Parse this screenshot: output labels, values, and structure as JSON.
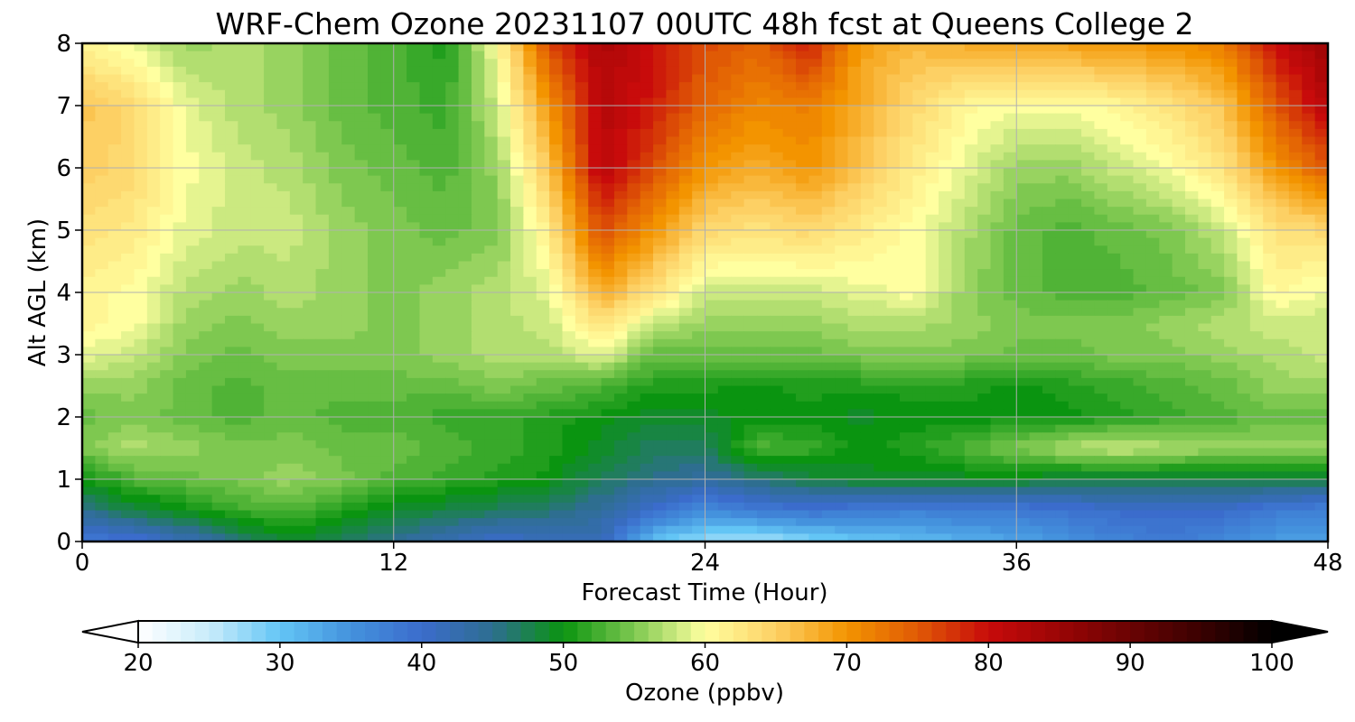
{
  "figure": {
    "title": "WRF-Chem Ozone  20231107 00UTC 48h fcst at Queens College 2"
  },
  "chart_data": {
    "type": "heatmap",
    "title": "WRF-Chem Ozone  20231107 00UTC 48h fcst at Queens College 2",
    "xlabel": "Forecast Time (Hour)",
    "ylabel": "Alt AGL (km)",
    "xlim": [
      0,
      48
    ],
    "ylim": [
      0,
      8
    ],
    "xticks": [
      0,
      12,
      24,
      36,
      48
    ],
    "yticks": [
      0,
      1,
      2,
      3,
      4,
      5,
      6,
      7,
      8
    ],
    "grid": true,
    "x_hours": [
      0,
      2,
      4,
      6,
      8,
      10,
      12,
      14,
      16,
      18,
      20,
      22,
      24,
      26,
      28,
      30,
      32,
      34,
      36,
      38,
      40,
      42,
      44,
      46,
      48
    ],
    "z_km": [
      0,
      0.5,
      1,
      1.5,
      2,
      2.5,
      3,
      3.5,
      4,
      5,
      6,
      7,
      8
    ],
    "ozone_ppbv": [
      [
        38,
        39,
        42,
        46,
        49,
        47,
        45,
        42,
        40,
        42,
        42,
        30,
        27,
        26,
        28,
        30,
        31,
        32,
        33,
        35,
        37,
        38,
        36,
        34,
        33
      ],
      [
        45,
        48,
        50,
        52,
        53,
        51,
        49,
        48,
        47,
        46,
        44,
        40,
        36,
        38,
        39,
        38,
        37,
        38,
        38,
        39,
        40,
        40,
        40,
        38,
        37
      ],
      [
        50,
        53,
        54,
        55,
        56,
        55,
        53,
        52,
        51,
        50,
        47,
        45,
        44,
        46,
        48,
        49,
        49,
        49,
        49,
        48,
        48,
        48,
        48,
        48,
        48
      ],
      [
        55,
        57,
        56,
        55,
        55,
        54,
        54,
        53,
        52,
        51,
        49,
        47,
        47,
        53,
        52,
        50,
        51,
        53,
        55,
        57,
        58,
        57,
        56,
        56,
        56
      ],
      [
        54,
        55,
        54,
        53,
        54,
        53,
        53,
        52,
        52,
        51,
        50,
        49,
        49,
        50,
        50,
        49,
        50,
        50,
        50,
        50,
        51,
        52,
        53,
        54,
        54
      ],
      [
        56,
        56,
        54,
        53,
        54,
        54,
        54,
        54,
        55,
        54,
        53,
        51,
        51,
        50,
        51,
        51,
        51,
        51,
        50,
        51,
        52,
        53,
        54,
        56,
        56
      ],
      [
        59,
        58,
        55,
        54,
        55,
        55,
        55,
        56,
        57,
        57,
        59,
        54,
        54,
        54,
        54,
        55,
        55,
        55,
        54,
        54,
        55,
        55,
        56,
        57,
        58
      ],
      [
        61,
        60,
        56,
        55,
        56,
        56,
        55,
        56,
        57,
        58,
        63,
        58,
        56,
        56,
        56,
        57,
        57,
        56,
        55,
        55,
        55,
        56,
        57,
        58,
        58
      ],
      [
        61,
        60,
        57,
        56,
        57,
        56,
        55,
        56,
        57,
        59,
        68,
        63,
        58,
        58,
        58,
        59,
        60,
        56,
        54,
        53,
        53,
        54,
        55,
        61,
        59
      ],
      [
        63,
        62,
        59,
        58,
        58,
        56,
        55,
        54,
        55,
        62,
        76,
        70,
        64,
        63,
        64,
        62,
        60,
        57,
        54,
        53,
        54,
        55,
        58,
        63,
        64
      ],
      [
        65,
        64,
        60,
        58,
        57,
        55,
        54,
        53,
        56,
        66,
        82,
        76,
        70,
        68,
        70,
        66,
        62,
        59,
        56,
        56,
        58,
        60,
        63,
        70,
        75
      ],
      [
        66,
        64,
        59,
        57,
        56,
        54,
        53,
        52,
        58,
        70,
        82,
        79,
        74,
        71,
        72,
        68,
        64,
        61,
        60,
        60,
        61,
        63,
        66,
        75,
        82
      ],
      [
        61,
        59,
        56,
        57,
        56,
        54,
        53,
        51,
        60,
        76,
        83,
        80,
        76,
        74,
        79,
        69,
        67,
        68,
        68,
        69,
        70,
        70,
        72,
        80,
        85
      ]
    ],
    "colorbar": {
      "label": "Ozone  (ppbv)",
      "min": 20,
      "max": 100,
      "ticks": [
        20,
        30,
        40,
        50,
        60,
        70,
        80,
        90,
        100
      ],
      "extend": "both",
      "colormap": [
        [
          20,
          "#ffffff"
        ],
        [
          25,
          "#c9ecfb"
        ],
        [
          30,
          "#63c5f5"
        ],
        [
          35,
          "#4492dd"
        ],
        [
          40,
          "#3b6ccc"
        ],
        [
          45,
          "#2e6e90"
        ],
        [
          50,
          "#0a9410"
        ],
        [
          55,
          "#7ec850"
        ],
        [
          60,
          "#ffffa0"
        ],
        [
          65,
          "#fdd064"
        ],
        [
          70,
          "#f39400"
        ],
        [
          75,
          "#e05a05"
        ],
        [
          80,
          "#c80b0b"
        ],
        [
          85,
          "#9a0505"
        ],
        [
          90,
          "#6a0303"
        ],
        [
          95,
          "#3a0101"
        ],
        [
          100,
          "#000000"
        ]
      ]
    }
  }
}
